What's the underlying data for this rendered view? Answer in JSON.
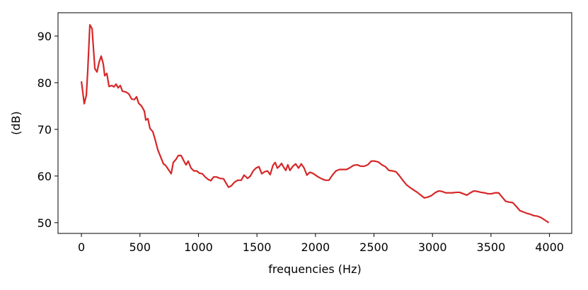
{
  "chart_data": {
    "type": "line",
    "xlabel": "frequencies (Hz)",
    "ylabel": "(dB)",
    "x": [
      0,
      24,
      42,
      54,
      72,
      91,
      115,
      133,
      151,
      169,
      187,
      199,
      217,
      236,
      260,
      278,
      296,
      314,
      332,
      350,
      381,
      405,
      429,
      453,
      471,
      489,
      514,
      538,
      550,
      568,
      586,
      610,
      628,
      653,
      677,
      701,
      719,
      743,
      767,
      785,
      809,
      828,
      852,
      876,
      894,
      912,
      937,
      961,
      985,
      1009,
      1033,
      1057,
      1082,
      1106,
      1130,
      1154,
      1184,
      1215,
      1233,
      1257,
      1281,
      1305,
      1335,
      1366,
      1390,
      1420,
      1444,
      1468,
      1492,
      1517,
      1541,
      1565,
      1589,
      1613,
      1637,
      1656,
      1674,
      1692,
      1710,
      1728,
      1746,
      1764,
      1782,
      1807,
      1831,
      1855,
      1879,
      1903,
      1927,
      1952,
      1976,
      2000,
      2024,
      2054,
      2085,
      2115,
      2145,
      2175,
      2205,
      2236,
      2266,
      2296,
      2326,
      2356,
      2387,
      2417,
      2447,
      2477,
      2508,
      2538,
      2568,
      2598,
      2628,
      2659,
      2689,
      2719,
      2749,
      2779,
      2810,
      2840,
      2870,
      2900,
      2931,
      2961,
      2991,
      3021,
      3051,
      3082,
      3112,
      3142,
      3172,
      3202,
      3233,
      3263,
      3293,
      3323,
      3353,
      3384,
      3414,
      3444,
      3474,
      3505,
      3535,
      3565,
      3595,
      3625,
      3656,
      3686,
      3716,
      3746,
      3776,
      3807,
      3837,
      3867,
      3897,
      3927,
      3958,
      3994
    ],
    "values": [
      80.3,
      75.5,
      77.3,
      82.6,
      92.4,
      91.6,
      83,
      82.3,
      84.4,
      85.7,
      84,
      81.5,
      82,
      79.2,
      79.4,
      79.1,
      79.7,
      78.9,
      79.4,
      78.2,
      78,
      77.6,
      76.5,
      76.4,
      77,
      75.6,
      75,
      73.9,
      72,
      72.3,
      70.2,
      69.5,
      68,
      65.6,
      64.1,
      62.6,
      62.3,
      61.4,
      60.5,
      62.9,
      63.6,
      64.4,
      64.4,
      63.2,
      62.4,
      63.2,
      61.7,
      61.1,
      61.1,
      60.6,
      60.5,
      59.8,
      59.3,
      59,
      59.8,
      59.8,
      59.5,
      59.4,
      58.6,
      57.6,
      57.9,
      58.6,
      59.1,
      59.1,
      60.2,
      59.5,
      60,
      61.1,
      61.7,
      62,
      60.5,
      60.9,
      61.1,
      60.3,
      62.3,
      62.9,
      61.7,
      62.1,
      62.7,
      61.9,
      61.2,
      62.4,
      61.2,
      62.1,
      62.6,
      61.7,
      62.6,
      61.7,
      60.2,
      60.8,
      60.6,
      60.2,
      59.8,
      59.4,
      59.1,
      59.1,
      60.2,
      61.1,
      61.4,
      61.4,
      61.4,
      61.8,
      62.3,
      62.4,
      62.1,
      62.1,
      62.4,
      63.2,
      63.2,
      63,
      62.4,
      62,
      61.2,
      61.1,
      60.9,
      60,
      59,
      58.1,
      57.5,
      57,
      56.5,
      55.9,
      55.3,
      55.5,
      55.8,
      56.4,
      56.8,
      56.7,
      56.4,
      56.4,
      56.4,
      56.5,
      56.5,
      56.2,
      55.9,
      56.4,
      56.8,
      56.7,
      56.5,
      56.4,
      56.2,
      56.2,
      56.4,
      56.4,
      55.5,
      54.6,
      54.4,
      54.3,
      53.5,
      52.6,
      52.3,
      52,
      51.8,
      51.5,
      51.4,
      51.1,
      50.6,
      50
    ],
    "color": "#d62728",
    "xlim": [
      -200,
      4190
    ],
    "xticks": [
      0,
      500,
      1000,
      1500,
      2000,
      2500,
      3000,
      3500,
      4000
    ],
    "ylim": [
      47.7,
      95
    ],
    "yticks": [
      50,
      60,
      70,
      80,
      90
    ],
    "grid": false
  }
}
